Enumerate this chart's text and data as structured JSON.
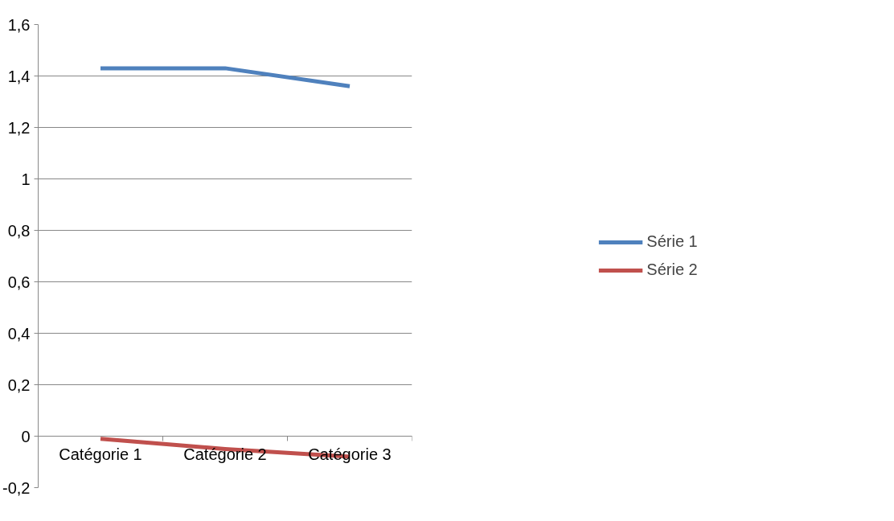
{
  "chart_data": {
    "type": "line",
    "categories": [
      "Catégorie 1",
      "Catégorie 2",
      "Catégorie 3"
    ],
    "series": [
      {
        "name": "Série 1",
        "color": "#4f81bd",
        "values": [
          1.43,
          1.43,
          1.36
        ]
      },
      {
        "name": "Série 2",
        "color": "#c0504d",
        "values": [
          -0.01,
          -0.05,
          -0.08
        ]
      }
    ],
    "ylim": [
      -0.2,
      1.6
    ],
    "yticks": [
      {
        "value": -0.2,
        "label": "-0,2"
      },
      {
        "value": 0,
        "label": "0"
      },
      {
        "value": 0.2,
        "label": "0,2"
      },
      {
        "value": 0.4,
        "label": "0,4"
      },
      {
        "value": 0.6,
        "label": "0,6"
      },
      {
        "value": 0.8,
        "label": "0,8"
      },
      {
        "value": 1,
        "label": "1"
      },
      {
        "value": 1.2,
        "label": "1,2"
      },
      {
        "value": 1.4,
        "label": "1,4"
      },
      {
        "value": 1.6,
        "label": "1,6"
      }
    ],
    "grid": "y",
    "legend": "right",
    "marker": "none",
    "line_style": "solid"
  }
}
